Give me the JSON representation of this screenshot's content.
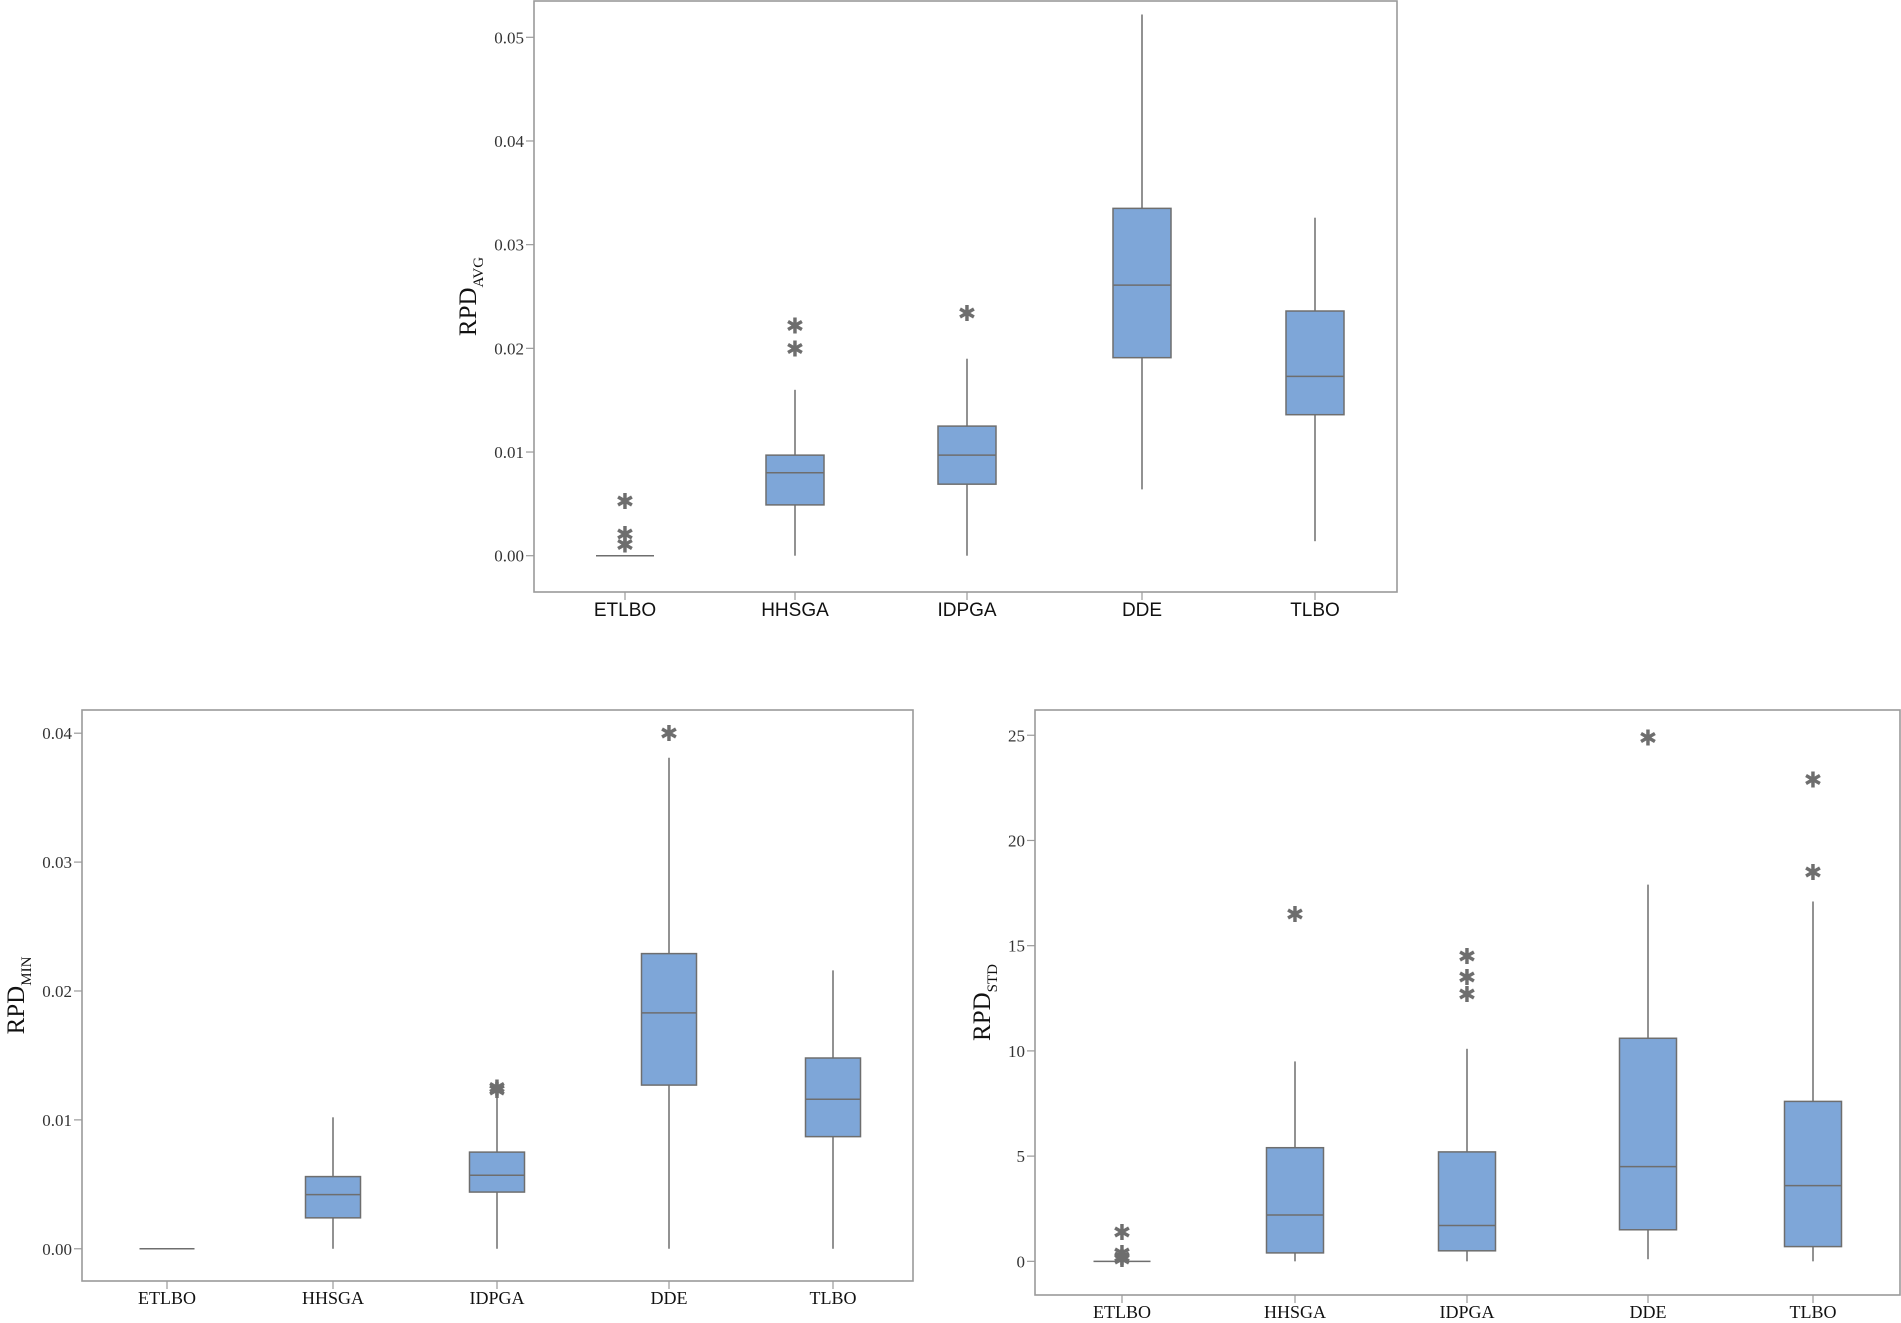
{
  "chart_data": [
    {
      "type": "boxplot",
      "ylabel": {
        "main": "RPD",
        "sub": "AVG"
      },
      "ylim": [
        -0.0035,
        0.0535
      ],
      "yticks": [
        0.0,
        0.01,
        0.02,
        0.03,
        0.04,
        0.05
      ],
      "ytick_labels": [
        "0.00",
        "0.01",
        "0.02",
        "0.03",
        "0.04",
        "0.05"
      ],
      "categories": [
        "ETLBO",
        "HHSGA",
        "IDPGA",
        "DDE",
        "TLBO"
      ],
      "series": [
        {
          "name": "ETLBO",
          "min": 0.0,
          "q1": 0.0,
          "median": 0.0,
          "q3": 0.0,
          "max": 0.0,
          "outliers": [
            0.0011,
            0.0021,
            0.0053
          ]
        },
        {
          "name": "HHSGA",
          "min": 0.0,
          "q1": 0.0049,
          "median": 0.008,
          "q3": 0.0097,
          "max": 0.016,
          "outliers": [
            0.02,
            0.0222
          ]
        },
        {
          "name": "IDPGA",
          "min": 0.0,
          "q1": 0.0069,
          "median": 0.0097,
          "q3": 0.0125,
          "max": 0.019,
          "outliers": [
            0.0234
          ]
        },
        {
          "name": "DDE",
          "min": 0.0064,
          "q1": 0.0191,
          "median": 0.0261,
          "q3": 0.0335,
          "max": 0.0522,
          "outliers": []
        },
        {
          "name": "TLBO",
          "min": 0.0014,
          "q1": 0.0136,
          "median": 0.0173,
          "q3": 0.0236,
          "max": 0.0326,
          "outliers": []
        }
      ]
    },
    {
      "type": "boxplot",
      "ylabel": {
        "main": "RPD",
        "sub": "MIN"
      },
      "ylim": [
        -0.0025,
        0.0418
      ],
      "yticks": [
        0.0,
        0.01,
        0.02,
        0.03,
        0.04
      ],
      "ytick_labels": [
        "0.00",
        "0.01",
        "0.02",
        "0.03",
        "0.04"
      ],
      "categories": [
        "ETLBO",
        "HHSGA",
        "IDPGA",
        "DDE",
        "TLBO"
      ],
      "series": [
        {
          "name": "ETLBO",
          "min": 0.0,
          "q1": 0.0,
          "median": 0.0,
          "q3": 0.0,
          "max": 0.0,
          "outliers": []
        },
        {
          "name": "HHSGA",
          "min": 0.0,
          "q1": 0.0024,
          "median": 0.0042,
          "q3": 0.0056,
          "max": 0.0102,
          "outliers": []
        },
        {
          "name": "IDPGA",
          "min": 0.0,
          "q1": 0.0044,
          "median": 0.0057,
          "q3": 0.0075,
          "max": 0.012,
          "outliers": [
            0.0123,
            0.0125
          ]
        },
        {
          "name": "DDE",
          "min": 0.0,
          "q1": 0.0127,
          "median": 0.0183,
          "q3": 0.0229,
          "max": 0.0381,
          "outliers": [
            0.04
          ]
        },
        {
          "name": "TLBO",
          "min": 0.0,
          "q1": 0.0087,
          "median": 0.0116,
          "q3": 0.0148,
          "max": 0.0216,
          "outliers": []
        }
      ]
    },
    {
      "type": "boxplot",
      "ylabel": {
        "main": "RPD",
        "sub": "STD"
      },
      "ylim": [
        -1.6,
        26.2
      ],
      "yticks": [
        0,
        5,
        10,
        15,
        20,
        25
      ],
      "ytick_labels": [
        "0",
        "5",
        "10",
        "15",
        "20",
        "25"
      ],
      "categories": [
        "ETLBO",
        "HHSGA",
        "IDPGA",
        "DDE",
        "TLBO"
      ],
      "series": [
        {
          "name": "ETLBO",
          "min": 0.0,
          "q1": 0.0,
          "median": 0.0,
          "q3": 0.0,
          "max": 0.0,
          "outliers": [
            0.1,
            0.2,
            0.4,
            1.4
          ]
        },
        {
          "name": "HHSGA",
          "min": 0.0,
          "q1": 0.4,
          "median": 2.2,
          "q3": 5.4,
          "max": 9.5,
          "outliers": [
            16.5
          ]
        },
        {
          "name": "IDPGA",
          "min": 0.0,
          "q1": 0.5,
          "median": 1.7,
          "q3": 5.2,
          "max": 10.1,
          "outliers": [
            12.7,
            13.5,
            14.5
          ]
        },
        {
          "name": "DDE",
          "min": 0.1,
          "q1": 1.5,
          "median": 4.5,
          "q3": 10.6,
          "max": 17.9,
          "outliers": [
            24.9
          ]
        },
        {
          "name": "TLBO",
          "min": 0.0,
          "q1": 0.7,
          "median": 3.6,
          "q3": 7.6,
          "max": 17.1,
          "outliers": [
            18.5,
            22.9
          ]
        }
      ]
    }
  ]
}
